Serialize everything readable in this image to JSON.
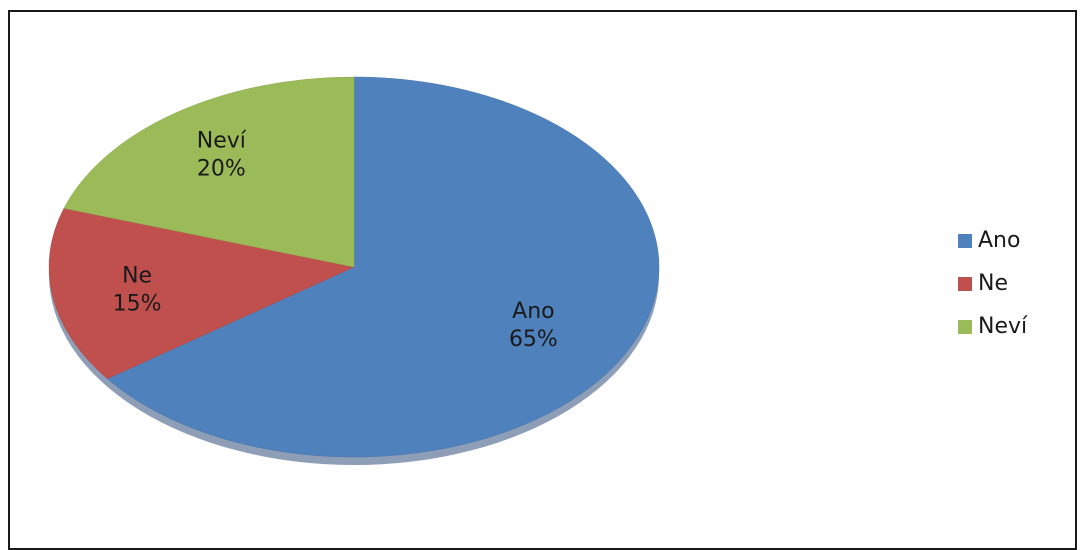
{
  "chart_data": {
    "type": "pie",
    "categories": [
      "Ano",
      "Ne",
      "Neví"
    ],
    "values": [
      65,
      15,
      20
    ],
    "value_labels": [
      "65%",
      "15%",
      "20%"
    ],
    "colors": [
      "#4F81BD",
      "#C0504D",
      "#9BBB59"
    ],
    "start_angle_deg": 0,
    "direction": "clockwise",
    "legend_position": "right"
  },
  "legend": {
    "items": [
      {
        "label": "Ano",
        "color": "#4F81BD"
      },
      {
        "label": "Ne",
        "color": "#C0504D"
      },
      {
        "label": "Neví",
        "color": "#9BBB59"
      }
    ]
  }
}
